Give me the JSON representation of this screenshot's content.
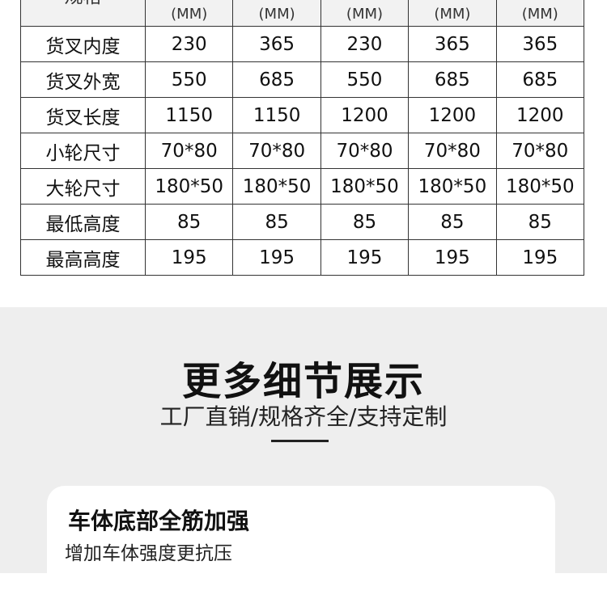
{
  "spec_table": {
    "header": {
      "label": "规格",
      "units": [
        "(MM)",
        "(MM)",
        "(MM)",
        "(MM)",
        "(MM)"
      ]
    },
    "rows": [
      {
        "label": "货叉内度",
        "values": [
          "230",
          "365",
          "230",
          "365",
          "365"
        ]
      },
      {
        "label": "货叉外宽",
        "values": [
          "550",
          "685",
          "550",
          "685",
          "685"
        ]
      },
      {
        "label": "货叉长度",
        "values": [
          "1150",
          "1150",
          "1200",
          "1200",
          "1200"
        ]
      },
      {
        "label": "小轮尺寸",
        "values": [
          "70*80",
          "70*80",
          "70*80",
          "70*80",
          "70*80"
        ]
      },
      {
        "label": "大轮尺寸",
        "values": [
          "180*50",
          "180*50",
          "180*50",
          "180*50",
          "180*50"
        ]
      },
      {
        "label": "最低高度",
        "values": [
          "85",
          "85",
          "85",
          "85",
          "85"
        ]
      },
      {
        "label": "最高高度",
        "values": [
          "195",
          "195",
          "195",
          "195",
          "195"
        ]
      }
    ]
  },
  "details": {
    "title": "更多细节展示",
    "subtitle": "工厂直销/规格齐全/支持定制"
  },
  "card": {
    "title": "车体底部全筋加强",
    "description": "增加车体强度更抗压"
  }
}
